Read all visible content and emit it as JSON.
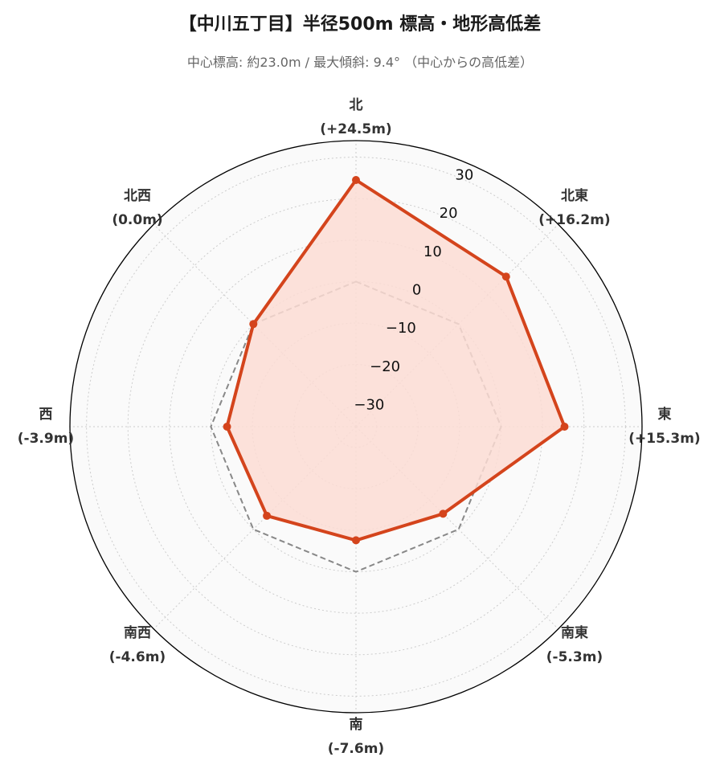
{
  "title": "【中川五丁目】半径500m 標高・地形高低差",
  "subtitle": "中心標高: 約23.0m / 最大傾斜: 9.4° （中心からの高低差）",
  "colors": {
    "series": "#d4441c",
    "fill": "#fcdcd3",
    "reference": "#888888",
    "background": "#fafafa",
    "grid": "#cccccc"
  },
  "chart_data": {
    "type": "radar",
    "title": "【中川五丁目】半径500m 標高・地形高低差",
    "subtitle": "中心標高: 約23.0m / 最大傾斜: 9.4° （中心からの高低差）",
    "categories": [
      "北",
      "北東",
      "東",
      "南東",
      "南",
      "南西",
      "西",
      "北西"
    ],
    "category_values": [
      "(+24.5m)",
      "(+16.2m)",
      "(+15.3m)",
      "(-5.3m)",
      "(-7.6m)",
      "(-4.6m)",
      "(-3.9m)",
      "(0.0m)"
    ],
    "series": [
      {
        "values": [
          24.5,
          16.2,
          15.3,
          -5.3,
          -7.6,
          -4.6,
          -3.9,
          0.0
        ],
        "style": "solid-filled-markers"
      },
      {
        "values": [
          0,
          0,
          0,
          0,
          0,
          0,
          0,
          0
        ],
        "style": "dashed-reference"
      }
    ],
    "rlim": [
      -35,
      34
    ],
    "rticks": [
      -30,
      -20,
      -10,
      0,
      10,
      20,
      30
    ],
    "rtick_labels": [
      "−30",
      "−20",
      "−10",
      "0",
      "10",
      "20",
      "30"
    ],
    "grid": true,
    "legend": "none"
  }
}
